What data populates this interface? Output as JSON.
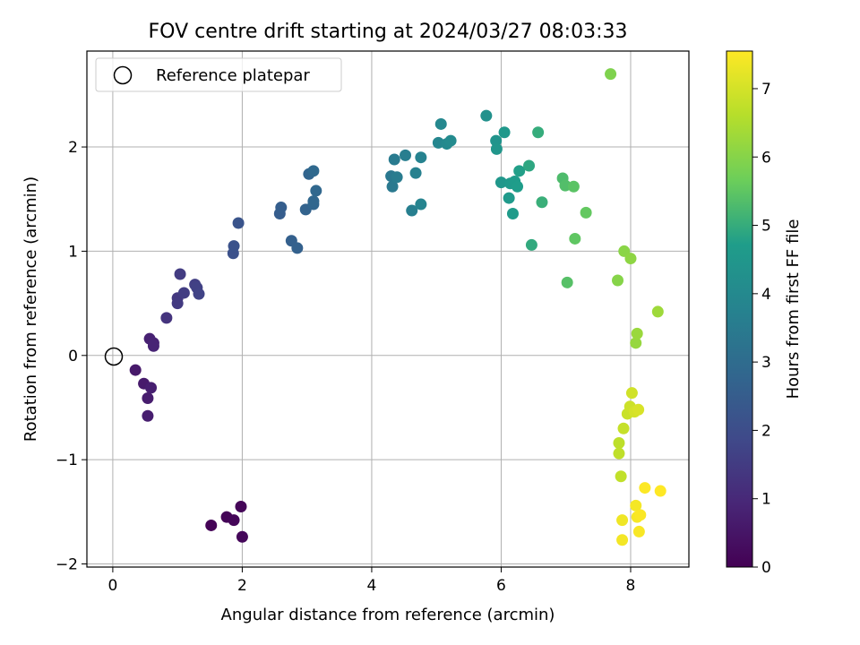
{
  "chart_data": {
    "type": "scatter",
    "title": "FOV centre drift starting at 2024/03/27 08:03:33",
    "xlabel": "Angular distance from reference (arcmin)",
    "ylabel": "Rotation from reference (arcmin)",
    "xlim": [
      -0.4,
      8.9
    ],
    "ylim": [
      -2.03,
      2.92
    ],
    "xticks": [
      0,
      2,
      4,
      6,
      8
    ],
    "yticks": [
      -2,
      -1,
      0,
      1,
      2
    ],
    "grid": true,
    "legend": {
      "placement": "top-left",
      "label": "Reference platepar"
    },
    "reference_point": {
      "x": 0,
      "y": 0
    },
    "colorbar": {
      "label": "Hours from first FF file",
      "range": [
        0,
        7.55
      ],
      "ticks": [
        0,
        1,
        2,
        3,
        4,
        5,
        6,
        7
      ],
      "colormap": [
        "#440154",
        "#482777",
        "#3f4a8a",
        "#31678e",
        "#26838f",
        "#1f9d8a",
        "#6cce5a",
        "#b6de2b",
        "#fee825"
      ]
    },
    "points": [
      {
        "x": 1.52,
        "y": -1.63,
        "h": 0.05
      },
      {
        "x": 1.76,
        "y": -1.55,
        "h": 0.08
      },
      {
        "x": 1.87,
        "y": -1.58,
        "h": 0.1
      },
      {
        "x": 1.98,
        "y": -1.45,
        "h": 0.12
      },
      {
        "x": 2.0,
        "y": -1.74,
        "h": 0.15
      },
      {
        "x": 0.35,
        "y": -0.14,
        "h": 0.6
      },
      {
        "x": 0.48,
        "y": -0.27,
        "h": 0.65
      },
      {
        "x": 0.54,
        "y": -0.41,
        "h": 0.7
      },
      {
        "x": 0.54,
        "y": -0.58,
        "h": 0.72
      },
      {
        "x": 0.59,
        "y": -0.31,
        "h": 0.75
      },
      {
        "x": 0.57,
        "y": 0.16,
        "h": 0.8
      },
      {
        "x": 0.63,
        "y": 0.12,
        "h": 0.85
      },
      {
        "x": 0.63,
        "y": 0.09,
        "h": 0.88
      },
      {
        "x": 0.83,
        "y": 0.36,
        "h": 1.3
      },
      {
        "x": 1.0,
        "y": 0.55,
        "h": 1.4
      },
      {
        "x": 1.0,
        "y": 0.5,
        "h": 1.45
      },
      {
        "x": 1.04,
        "y": 0.78,
        "h": 1.5
      },
      {
        "x": 1.1,
        "y": 0.6,
        "h": 1.55
      },
      {
        "x": 1.27,
        "y": 0.68,
        "h": 1.6
      },
      {
        "x": 1.3,
        "y": 0.65,
        "h": 1.65
      },
      {
        "x": 1.33,
        "y": 0.59,
        "h": 1.7
      },
      {
        "x": 1.86,
        "y": 0.98,
        "h": 2.1
      },
      {
        "x": 1.87,
        "y": 1.05,
        "h": 2.15
      },
      {
        "x": 1.94,
        "y": 1.27,
        "h": 2.2
      },
      {
        "x": 2.58,
        "y": 1.36,
        "h": 2.5
      },
      {
        "x": 2.6,
        "y": 1.42,
        "h": 2.55
      },
      {
        "x": 2.76,
        "y": 1.1,
        "h": 2.6
      },
      {
        "x": 2.85,
        "y": 1.03,
        "h": 2.65
      },
      {
        "x": 2.98,
        "y": 1.4,
        "h": 2.7
      },
      {
        "x": 3.03,
        "y": 1.74,
        "h": 2.75
      },
      {
        "x": 3.1,
        "y": 1.45,
        "h": 2.8
      },
      {
        "x": 3.1,
        "y": 1.48,
        "h": 2.82
      },
      {
        "x": 3.14,
        "y": 1.58,
        "h": 2.85
      },
      {
        "x": 3.1,
        "y": 1.77,
        "h": 2.9
      },
      {
        "x": 4.3,
        "y": 1.72,
        "h": 3.4
      },
      {
        "x": 4.32,
        "y": 1.62,
        "h": 3.45
      },
      {
        "x": 4.35,
        "y": 1.88,
        "h": 3.5
      },
      {
        "x": 4.39,
        "y": 1.71,
        "h": 3.55
      },
      {
        "x": 4.52,
        "y": 1.92,
        "h": 3.6
      },
      {
        "x": 4.62,
        "y": 1.39,
        "h": 3.65
      },
      {
        "x": 4.68,
        "y": 1.75,
        "h": 3.7
      },
      {
        "x": 4.76,
        "y": 1.9,
        "h": 3.75
      },
      {
        "x": 4.76,
        "y": 1.45,
        "h": 3.8
      },
      {
        "x": 5.03,
        "y": 2.04,
        "h": 3.9
      },
      {
        "x": 5.07,
        "y": 2.22,
        "h": 3.95
      },
      {
        "x": 5.16,
        "y": 2.03,
        "h": 4.0
      },
      {
        "x": 5.22,
        "y": 2.06,
        "h": 4.05
      },
      {
        "x": 5.77,
        "y": 2.3,
        "h": 4.3
      },
      {
        "x": 5.92,
        "y": 2.06,
        "h": 4.4
      },
      {
        "x": 5.93,
        "y": 1.98,
        "h": 4.45
      },
      {
        "x": 6.0,
        "y": 1.66,
        "h": 4.5
      },
      {
        "x": 6.05,
        "y": 2.14,
        "h": 4.55
      },
      {
        "x": 6.12,
        "y": 1.51,
        "h": 4.6
      },
      {
        "x": 6.14,
        "y": 1.65,
        "h": 4.62
      },
      {
        "x": 6.18,
        "y": 1.36,
        "h": 4.65
      },
      {
        "x": 6.21,
        "y": 1.67,
        "h": 4.7
      },
      {
        "x": 6.25,
        "y": 1.62,
        "h": 4.72
      },
      {
        "x": 6.28,
        "y": 1.77,
        "h": 4.75
      },
      {
        "x": 6.43,
        "y": 1.82,
        "h": 4.9
      },
      {
        "x": 6.47,
        "y": 1.06,
        "h": 4.95
      },
      {
        "x": 6.57,
        "y": 2.14,
        "h": 5.0
      },
      {
        "x": 6.63,
        "y": 1.47,
        "h": 5.05
      },
      {
        "x": 6.95,
        "y": 1.7,
        "h": 5.3
      },
      {
        "x": 6.99,
        "y": 1.63,
        "h": 5.35
      },
      {
        "x": 7.02,
        "y": 0.7,
        "h": 5.4
      },
      {
        "x": 7.12,
        "y": 1.62,
        "h": 5.45
      },
      {
        "x": 7.14,
        "y": 1.12,
        "h": 5.5
      },
      {
        "x": 7.31,
        "y": 1.37,
        "h": 5.55
      },
      {
        "x": 7.69,
        "y": 2.7,
        "h": 5.9
      },
      {
        "x": 7.8,
        "y": 0.72,
        "h": 6.0
      },
      {
        "x": 7.9,
        "y": 1.0,
        "h": 6.05
      },
      {
        "x": 8.0,
        "y": 0.93,
        "h": 6.1
      },
      {
        "x": 8.08,
        "y": 0.12,
        "h": 6.2
      },
      {
        "x": 8.1,
        "y": 0.21,
        "h": 6.25
      },
      {
        "x": 8.42,
        "y": 0.42,
        "h": 6.3
      },
      {
        "x": 7.82,
        "y": -0.84,
        "h": 6.7
      },
      {
        "x": 7.82,
        "y": -0.94,
        "h": 6.72
      },
      {
        "x": 7.85,
        "y": -1.16,
        "h": 6.75
      },
      {
        "x": 7.89,
        "y": -0.7,
        "h": 6.8
      },
      {
        "x": 7.95,
        "y": -0.56,
        "h": 6.85
      },
      {
        "x": 7.99,
        "y": -0.49,
        "h": 6.9
      },
      {
        "x": 8.02,
        "y": -0.36,
        "h": 6.95
      },
      {
        "x": 8.06,
        "y": -0.54,
        "h": 7.0
      },
      {
        "x": 8.12,
        "y": -0.52,
        "h": 7.05
      },
      {
        "x": 7.87,
        "y": -1.58,
        "h": 7.35
      },
      {
        "x": 7.87,
        "y": -1.77,
        "h": 7.4
      },
      {
        "x": 8.08,
        "y": -1.44,
        "h": 7.42
      },
      {
        "x": 8.1,
        "y": -1.55,
        "h": 7.45
      },
      {
        "x": 8.13,
        "y": -1.69,
        "h": 7.47
      },
      {
        "x": 8.15,
        "y": -1.53,
        "h": 7.5
      },
      {
        "x": 8.22,
        "y": -1.27,
        "h": 7.52
      },
      {
        "x": 8.46,
        "y": -1.3,
        "h": 7.55
      }
    ]
  }
}
